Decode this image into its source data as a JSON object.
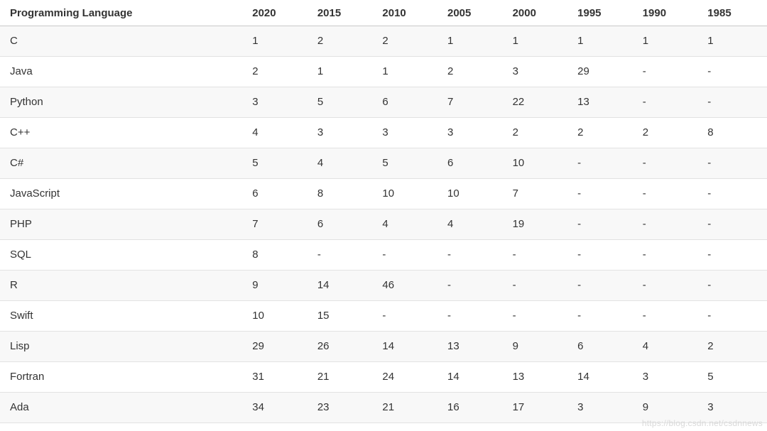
{
  "page": {
    "watermark": "https://blog.csdn.net/csdnnews"
  },
  "colors": {
    "text": "#333333",
    "stripe_background": "#f8f8f8",
    "row_border": "#e2e2e2",
    "header_border": "#c9c9c9",
    "watermark_text": "#dadada"
  },
  "chart_data": {
    "type": "table",
    "columns": [
      "Programming Language",
      "2020",
      "2015",
      "2010",
      "2005",
      "2000",
      "1995",
      "1990",
      "1985"
    ],
    "missing_marker": "-",
    "rows": [
      {
        "language": "C",
        "ranks": [
          "1",
          "2",
          "2",
          "1",
          "1",
          "1",
          "1",
          "1"
        ]
      },
      {
        "language": "Java",
        "ranks": [
          "2",
          "1",
          "1",
          "2",
          "3",
          "29",
          "-",
          "-"
        ]
      },
      {
        "language": "Python",
        "ranks": [
          "3",
          "5",
          "6",
          "7",
          "22",
          "13",
          "-",
          "-"
        ]
      },
      {
        "language": "C++",
        "ranks": [
          "4",
          "3",
          "3",
          "3",
          "2",
          "2",
          "2",
          "8"
        ]
      },
      {
        "language": "C#",
        "ranks": [
          "5",
          "4",
          "5",
          "6",
          "10",
          "-",
          "-",
          "-"
        ]
      },
      {
        "language": "JavaScript",
        "ranks": [
          "6",
          "8",
          "10",
          "10",
          "7",
          "-",
          "-",
          "-"
        ]
      },
      {
        "language": "PHP",
        "ranks": [
          "7",
          "6",
          "4",
          "4",
          "19",
          "-",
          "-",
          "-"
        ]
      },
      {
        "language": "SQL",
        "ranks": [
          "8",
          "-",
          "-",
          "-",
          "-",
          "-",
          "-",
          "-"
        ]
      },
      {
        "language": "R",
        "ranks": [
          "9",
          "14",
          "46",
          "-",
          "-",
          "-",
          "-",
          "-"
        ]
      },
      {
        "language": "Swift",
        "ranks": [
          "10",
          "15",
          "-",
          "-",
          "-",
          "-",
          "-",
          "-"
        ]
      },
      {
        "language": "Lisp",
        "ranks": [
          "29",
          "26",
          "14",
          "13",
          "9",
          "6",
          "4",
          "2"
        ]
      },
      {
        "language": "Fortran",
        "ranks": [
          "31",
          "21",
          "24",
          "14",
          "13",
          "14",
          "3",
          "5"
        ]
      },
      {
        "language": "Ada",
        "ranks": [
          "34",
          "23",
          "21",
          "16",
          "17",
          "3",
          "9",
          "3"
        ]
      }
    ],
    "layout": {
      "striped": true,
      "grid": "horizontal-only",
      "first_column_align": "left",
      "year_columns_align": "left"
    }
  }
}
